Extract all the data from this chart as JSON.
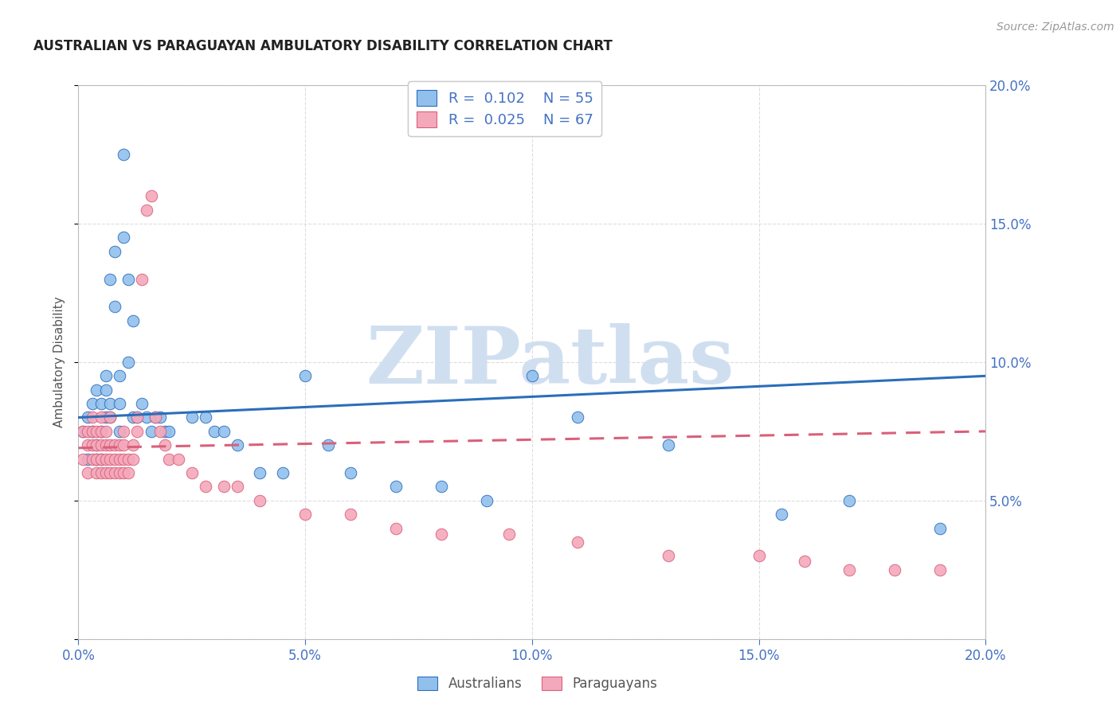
{
  "title": "AUSTRALIAN VS PARAGUAYAN AMBULATORY DISABILITY CORRELATION CHART",
  "source": "Source: ZipAtlas.com",
  "ylabel": "Ambulatory Disability",
  "xlim": [
    0.0,
    0.2
  ],
  "ylim": [
    0.0,
    0.2
  ],
  "xticks": [
    0.0,
    0.05,
    0.1,
    0.15,
    0.2
  ],
  "yticks": [
    0.0,
    0.05,
    0.1,
    0.15,
    0.2
  ],
  "blue_color": "#92C0ED",
  "pink_color": "#F4A8BB",
  "blue_line_color": "#2A6EBB",
  "pink_line_color": "#D9607A",
  "label_color": "#4472C4",
  "tick_color": "#4472C4",
  "background_color": "#FFFFFF",
  "watermark_text": "ZIPatlas",
  "watermark_color": "#D0DFF0",
  "legend_R_blue": "0.102",
  "legend_N_blue": "55",
  "legend_R_pink": "0.025",
  "legend_N_pink": "67",
  "legend_label_blue": "Australians",
  "legend_label_pink": "Paraguayans",
  "blue_line_start_y": 0.08,
  "blue_line_end_y": 0.095,
  "pink_line_start_y": 0.069,
  "pink_line_end_y": 0.075,
  "aus_x": [
    0.001,
    0.002,
    0.002,
    0.003,
    0.003,
    0.004,
    0.004,
    0.004,
    0.005,
    0.005,
    0.005,
    0.006,
    0.006,
    0.006,
    0.007,
    0.007,
    0.007,
    0.008,
    0.008,
    0.009,
    0.009,
    0.009,
    0.01,
    0.01,
    0.011,
    0.011,
    0.012,
    0.012,
    0.013,
    0.014,
    0.015,
    0.016,
    0.017,
    0.018,
    0.019,
    0.02,
    0.025,
    0.028,
    0.03,
    0.032,
    0.035,
    0.04,
    0.045,
    0.05,
    0.055,
    0.06,
    0.07,
    0.08,
    0.09,
    0.1,
    0.11,
    0.13,
    0.155,
    0.17,
    0.19
  ],
  "aus_y": [
    0.075,
    0.08,
    0.065,
    0.075,
    0.085,
    0.09,
    0.07,
    0.065,
    0.085,
    0.075,
    0.065,
    0.08,
    0.09,
    0.095,
    0.08,
    0.085,
    0.13,
    0.12,
    0.14,
    0.095,
    0.085,
    0.075,
    0.175,
    0.145,
    0.13,
    0.1,
    0.115,
    0.08,
    0.08,
    0.085,
    0.08,
    0.075,
    0.08,
    0.08,
    0.075,
    0.075,
    0.08,
    0.08,
    0.075,
    0.075,
    0.07,
    0.06,
    0.06,
    0.095,
    0.07,
    0.06,
    0.055,
    0.055,
    0.05,
    0.095,
    0.08,
    0.07,
    0.045,
    0.05,
    0.04
  ],
  "par_x": [
    0.001,
    0.001,
    0.002,
    0.002,
    0.002,
    0.003,
    0.003,
    0.003,
    0.003,
    0.004,
    0.004,
    0.004,
    0.004,
    0.005,
    0.005,
    0.005,
    0.005,
    0.005,
    0.006,
    0.006,
    0.006,
    0.006,
    0.007,
    0.007,
    0.007,
    0.007,
    0.008,
    0.008,
    0.008,
    0.009,
    0.009,
    0.009,
    0.01,
    0.01,
    0.01,
    0.01,
    0.011,
    0.011,
    0.012,
    0.012,
    0.013,
    0.013,
    0.014,
    0.015,
    0.016,
    0.017,
    0.018,
    0.019,
    0.02,
    0.022,
    0.025,
    0.028,
    0.032,
    0.035,
    0.04,
    0.05,
    0.06,
    0.07,
    0.08,
    0.095,
    0.11,
    0.13,
    0.15,
    0.16,
    0.17,
    0.18,
    0.19
  ],
  "par_y": [
    0.065,
    0.075,
    0.06,
    0.07,
    0.075,
    0.065,
    0.07,
    0.075,
    0.08,
    0.06,
    0.065,
    0.07,
    0.075,
    0.06,
    0.065,
    0.07,
    0.075,
    0.08,
    0.06,
    0.065,
    0.07,
    0.075,
    0.06,
    0.065,
    0.07,
    0.08,
    0.06,
    0.065,
    0.07,
    0.06,
    0.065,
    0.07,
    0.06,
    0.065,
    0.07,
    0.075,
    0.06,
    0.065,
    0.07,
    0.065,
    0.075,
    0.08,
    0.13,
    0.155,
    0.16,
    0.08,
    0.075,
    0.07,
    0.065,
    0.065,
    0.06,
    0.055,
    0.055,
    0.055,
    0.05,
    0.045,
    0.045,
    0.04,
    0.038,
    0.038,
    0.035,
    0.03,
    0.03,
    0.028,
    0.025,
    0.025,
    0.025
  ]
}
